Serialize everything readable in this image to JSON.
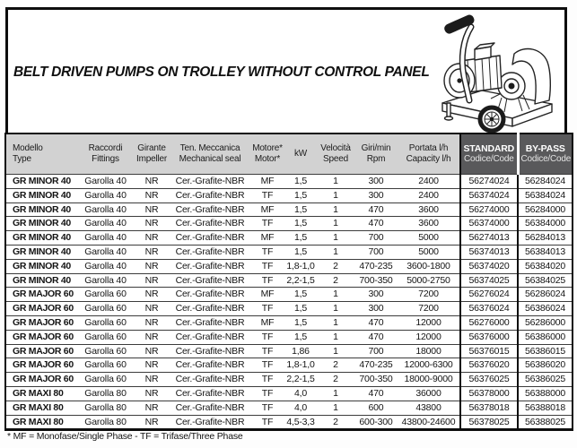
{
  "page": {
    "title": "BELT DRIVEN PUMPS ON TROLLEY WITHOUT CONTROL PANEL",
    "footnote": "* MF = Monofase/Single Phase - TF = Trifase/Three Phase"
  },
  "icons": {
    "illustration": "trolley-pump-line-drawing"
  },
  "colors": {
    "header_light_bg": "#d2d2d2",
    "header_dark_bg": "#59595b",
    "header_dark_text": "#ffffff",
    "border": "#0d0d0d",
    "text": "#141414"
  },
  "table": {
    "columns": [
      {
        "id": "model",
        "line1": "Modello",
        "line2": "Type"
      },
      {
        "id": "fittings",
        "line1": "Raccordi",
        "line2": "Fittings"
      },
      {
        "id": "impeller",
        "line1": "Girante",
        "line2": "Impeller"
      },
      {
        "id": "seal",
        "line1": "Ten. Meccanica",
        "line2": "Mechanical seal"
      },
      {
        "id": "motor",
        "line1": "Motore*",
        "line2": "Motor*"
      },
      {
        "id": "kw",
        "line1": "kW",
        "line2": ""
      },
      {
        "id": "speed",
        "line1": "Velocità",
        "line2": "Speed"
      },
      {
        "id": "rpm",
        "line1": "Giri/min",
        "line2": "Rpm"
      },
      {
        "id": "capacity",
        "line1": "Portata l/h",
        "line2": "Capacity l/h"
      },
      {
        "id": "standard",
        "line1": "STANDARD",
        "line2": "Codice/Code"
      },
      {
        "id": "bypass",
        "line1": "BY-PASS",
        "line2": "Codice/Code"
      }
    ],
    "rows": [
      [
        "GR MINOR 40",
        "Garolla 40",
        "NR",
        "Cer.-Grafite-NBR",
        "MF",
        "1,5",
        "1",
        "300",
        "2400",
        "56274024",
        "56284024"
      ],
      [
        "GR MINOR 40",
        "Garolla 40",
        "NR",
        "Cer.-Grafite-NBR",
        "TF",
        "1,5",
        "1",
        "300",
        "2400",
        "56374024",
        "56384024"
      ],
      [
        "GR MINOR 40",
        "Garolla 40",
        "NR",
        "Cer.-Grafite-NBR",
        "MF",
        "1,5",
        "1",
        "470",
        "3600",
        "56274000",
        "56284000"
      ],
      [
        "GR MINOR 40",
        "Garolla 40",
        "NR",
        "Cer.-Grafite-NBR",
        "TF",
        "1,5",
        "1",
        "470",
        "3600",
        "56374000",
        "56384000"
      ],
      [
        "GR MINOR 40",
        "Garolla 40",
        "NR",
        "Cer.-Grafite-NBR",
        "MF",
        "1,5",
        "1",
        "700",
        "5000",
        "56274013",
        "56284013"
      ],
      [
        "GR MINOR 40",
        "Garolla 40",
        "NR",
        "Cer.-Grafite-NBR",
        "TF",
        "1,5",
        "1",
        "700",
        "5000",
        "56374013",
        "56384013"
      ],
      [
        "GR MINOR 40",
        "Garolla 40",
        "NR",
        "Cer.-Grafite-NBR",
        "TF",
        "1,8-1,0",
        "2",
        "470-235",
        "3600-1800",
        "56374020",
        "56384020"
      ],
      [
        "GR MINOR 40",
        "Garolla 40",
        "NR",
        "Cer.-Grafite-NBR",
        "TF",
        "2,2-1,5",
        "2",
        "700-350",
        "5000-2750",
        "56374025",
        "56384025"
      ],
      [
        "GR MAJOR 60",
        "Garolla 60",
        "NR",
        "Cer.-Grafite-NBR",
        "MF",
        "1,5",
        "1",
        "300",
        "7200",
        "56276024",
        "56286024"
      ],
      [
        "GR MAJOR 60",
        "Garolla 60",
        "NR",
        "Cer.-Grafite-NBR",
        "TF",
        "1,5",
        "1",
        "300",
        "7200",
        "56376024",
        "56386024"
      ],
      [
        "GR MAJOR 60",
        "Garolla 60",
        "NR",
        "Cer.-Grafite-NBR",
        "MF",
        "1,5",
        "1",
        "470",
        "12000",
        "56276000",
        "56286000"
      ],
      [
        "GR MAJOR 60",
        "Garolla 60",
        "NR",
        "Cer.-Grafite-NBR",
        "TF",
        "1,5",
        "1",
        "470",
        "12000",
        "56376000",
        "56386000"
      ],
      [
        "GR MAJOR 60",
        "Garolla 60",
        "NR",
        "Cer.-Grafite-NBR",
        "TF",
        "1,86",
        "1",
        "700",
        "18000",
        "56376015",
        "56386015"
      ],
      [
        "GR MAJOR 60",
        "Garolla 60",
        "NR",
        "Cer.-Grafite-NBR",
        "TF",
        "1,8-1,0",
        "2",
        "470-235",
        "12000-6300",
        "56376020",
        "56386020"
      ],
      [
        "GR MAJOR 60",
        "Garolla 60",
        "NR",
        "Cer.-Grafite-NBR",
        "TF",
        "2,2-1,5",
        "2",
        "700-350",
        "18000-9000",
        "56376025",
        "56386025"
      ],
      [
        "GR MAXI 80",
        "Garolla 80",
        "NR",
        "Cer.-Grafite-NBR",
        "TF",
        "4,0",
        "1",
        "470",
        "36000",
        "56378000",
        "56388000"
      ],
      [
        "GR MAXI 80",
        "Garolla 80",
        "NR",
        "Cer.-Grafite-NBR",
        "TF",
        "4,0",
        "1",
        "600",
        "43800",
        "56378018",
        "56388018"
      ],
      [
        "GR MAXI 80",
        "Garolla 80",
        "NR",
        "Cer.-Grafite-NBR",
        "TF",
        "4,5-3,3",
        "2",
        "600-300",
        "43800-24600",
        "56378025",
        "56388025"
      ]
    ]
  }
}
